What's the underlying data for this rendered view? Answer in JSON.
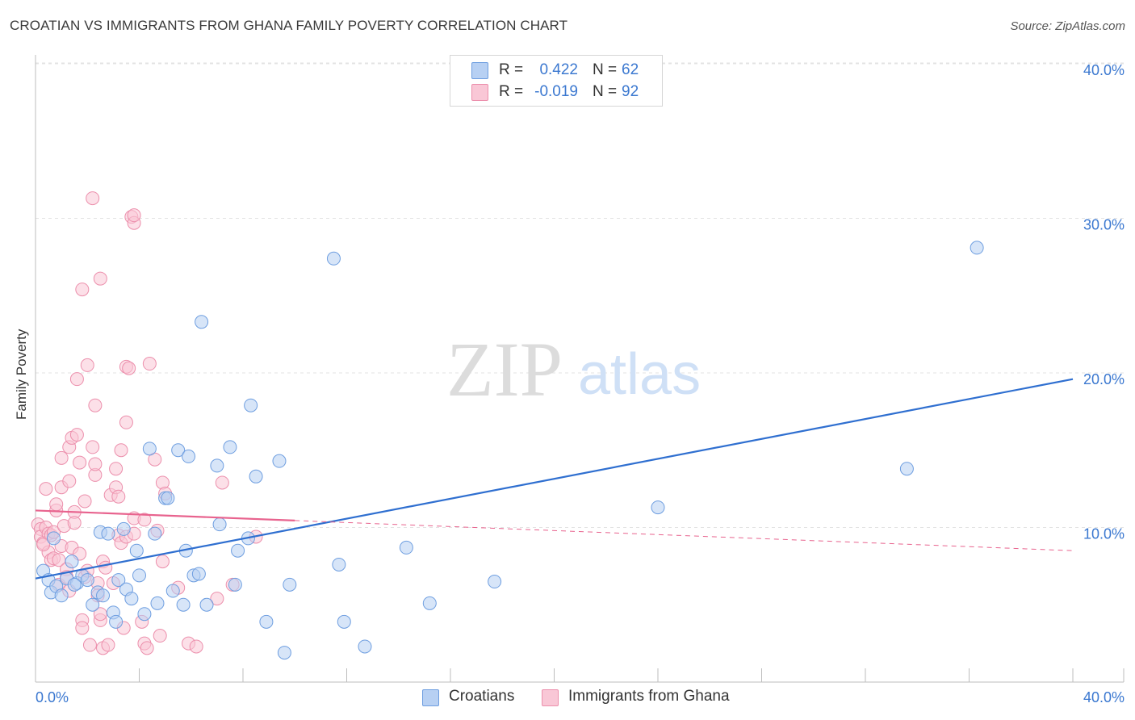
{
  "title": "CROATIAN VS IMMIGRANTS FROM GHANA FAMILY POVERTY CORRELATION CHART",
  "source": "Source: ZipAtlas.com",
  "watermark": {
    "zip": "ZIP",
    "atlas": "atlas"
  },
  "legend_top": {
    "rows": [
      {
        "r_label": "R =",
        "r_value": "0.422",
        "n_label": "N =",
        "n_value": "62",
        "color": "#b7d0f3",
        "border": "#6e9ee0"
      },
      {
        "r_label": "R =",
        "r_value": "-0.019",
        "n_label": "N =",
        "n_value": "92",
        "color": "#f9c7d6",
        "border": "#ec8fac"
      }
    ]
  },
  "bottom_legend": {
    "croatians": "Croatians",
    "ghana": "Immigrants from Ghana"
  },
  "chart_data": {
    "type": "scatter",
    "title": "CROATIAN VS IMMIGRANTS FROM GHANA FAMILY POVERTY CORRELATION CHART",
    "xlabel": "",
    "ylabel": "Family Poverty",
    "xlim": [
      0,
      40
    ],
    "ylim": [
      0,
      41
    ],
    "x_tick_labels": [
      "0.0%",
      "40.0%"
    ],
    "y_ticks": [
      10,
      20,
      30,
      40
    ],
    "y_tick_labels": [
      "10.0%",
      "20.0%",
      "30.0%",
      "40.0%"
    ],
    "grid": true,
    "series": [
      {
        "name": "Croatians",
        "color": "#6e9ee0",
        "fill": "#b7d0f3",
        "trend": {
          "x0": 0,
          "y0": 6.7,
          "x1": 40,
          "y1": 19.6,
          "solid_to": 40,
          "color": "#2f6fd0"
        },
        "points": [
          [
            0.3,
            7.2
          ],
          [
            0.5,
            6.6
          ],
          [
            0.6,
            5.8
          ],
          [
            0.8,
            6.2
          ],
          [
            1.0,
            5.6
          ],
          [
            1.2,
            6.7
          ],
          [
            1.4,
            7.8
          ],
          [
            1.6,
            6.4
          ],
          [
            1.8,
            6.9
          ],
          [
            2.0,
            6.6
          ],
          [
            2.2,
            5.0
          ],
          [
            2.4,
            5.8
          ],
          [
            2.5,
            9.7
          ],
          [
            2.6,
            5.6
          ],
          [
            2.8,
            9.6
          ],
          [
            3.0,
            4.5
          ],
          [
            3.1,
            3.9
          ],
          [
            3.2,
            6.6
          ],
          [
            3.4,
            9.9
          ],
          [
            3.5,
            6.0
          ],
          [
            3.7,
            5.4
          ],
          [
            3.9,
            8.5
          ],
          [
            4.0,
            6.9
          ],
          [
            4.2,
            4.4
          ],
          [
            4.4,
            15.1
          ],
          [
            4.6,
            9.6
          ],
          [
            4.7,
            5.1
          ],
          [
            5.0,
            11.9
          ],
          [
            5.1,
            11.9
          ],
          [
            5.3,
            5.9
          ],
          [
            5.5,
            15.0
          ],
          [
            5.7,
            5.0
          ],
          [
            5.8,
            8.5
          ],
          [
            5.9,
            14.6
          ],
          [
            6.1,
            6.9
          ],
          [
            6.3,
            7.0
          ],
          [
            6.4,
            23.3
          ],
          [
            6.6,
            5.0
          ],
          [
            7.0,
            14.0
          ],
          [
            7.1,
            10.2
          ],
          [
            7.5,
            15.2
          ],
          [
            7.7,
            6.3
          ],
          [
            7.8,
            8.5
          ],
          [
            8.2,
            9.3
          ],
          [
            8.3,
            17.9
          ],
          [
            8.5,
            13.3
          ],
          [
            8.9,
            3.9
          ],
          [
            9.4,
            14.3
          ],
          [
            9.6,
            1.9
          ],
          [
            9.8,
            6.3
          ],
          [
            11.5,
            27.4
          ],
          [
            11.7,
            7.6
          ],
          [
            11.9,
            3.9
          ],
          [
            12.7,
            2.3
          ],
          [
            14.3,
            8.7
          ],
          [
            15.2,
            5.1
          ],
          [
            17.7,
            6.5
          ],
          [
            24.0,
            11.3
          ],
          [
            33.6,
            13.8
          ],
          [
            36.3,
            28.1
          ],
          [
            0.7,
            9.3
          ],
          [
            1.5,
            6.3
          ]
        ]
      },
      {
        "name": "Immigrants from Ghana",
        "color": "#ec8fac",
        "fill": "#f9c7d6",
        "trend": {
          "x0": 0,
          "y0": 11.1,
          "x1": 40,
          "y1": 8.5,
          "solid_to": 10,
          "color": "#e8638e"
        },
        "points": [
          [
            0.1,
            10.2
          ],
          [
            0.2,
            9.9
          ],
          [
            0.2,
            9.4
          ],
          [
            0.3,
            9.0
          ],
          [
            0.4,
            10.0
          ],
          [
            0.4,
            12.5
          ],
          [
            0.5,
            8.4
          ],
          [
            0.5,
            9.6
          ],
          [
            0.6,
            7.9
          ],
          [
            0.6,
            9.5
          ],
          [
            0.7,
            9.7
          ],
          [
            0.7,
            8.0
          ],
          [
            0.8,
            11.1
          ],
          [
            0.8,
            11.5
          ],
          [
            0.9,
            6.3
          ],
          [
            0.9,
            7.9
          ],
          [
            1.0,
            8.8
          ],
          [
            1.0,
            14.5
          ],
          [
            1.0,
            12.6
          ],
          [
            1.1,
            10.1
          ],
          [
            1.2,
            7.3
          ],
          [
            1.2,
            6.8
          ],
          [
            1.3,
            15.2
          ],
          [
            1.3,
            5.9
          ],
          [
            1.3,
            13.0
          ],
          [
            1.4,
            8.7
          ],
          [
            1.4,
            15.8
          ],
          [
            1.5,
            11.0
          ],
          [
            1.5,
            10.3
          ],
          [
            1.6,
            16.0
          ],
          [
            1.6,
            19.6
          ],
          [
            1.7,
            14.2
          ],
          [
            1.7,
            8.3
          ],
          [
            1.8,
            4.0
          ],
          [
            1.8,
            3.5
          ],
          [
            1.8,
            25.4
          ],
          [
            1.9,
            6.8
          ],
          [
            1.9,
            11.7
          ],
          [
            2.0,
            20.5
          ],
          [
            2.0,
            7.2
          ],
          [
            2.1,
            2.4
          ],
          [
            2.2,
            15.2
          ],
          [
            2.2,
            31.3
          ],
          [
            2.3,
            17.9
          ],
          [
            2.3,
            13.4
          ],
          [
            2.3,
            14.1
          ],
          [
            2.4,
            6.4
          ],
          [
            2.4,
            5.6
          ],
          [
            2.5,
            4.0
          ],
          [
            2.5,
            4.4
          ],
          [
            2.5,
            26.1
          ],
          [
            2.6,
            2.2
          ],
          [
            2.6,
            7.8
          ],
          [
            2.7,
            7.4
          ],
          [
            2.8,
            2.4
          ],
          [
            2.9,
            12.1
          ],
          [
            3.0,
            6.4
          ],
          [
            3.1,
            13.8
          ],
          [
            3.1,
            12.6
          ],
          [
            3.2,
            9.5
          ],
          [
            3.2,
            12.0
          ],
          [
            3.3,
            9.0
          ],
          [
            3.3,
            15.0
          ],
          [
            3.4,
            3.5
          ],
          [
            3.5,
            16.8
          ],
          [
            3.5,
            20.4
          ],
          [
            3.5,
            9.4
          ],
          [
            3.6,
            20.3
          ],
          [
            3.7,
            30.1
          ],
          [
            3.8,
            29.7
          ],
          [
            3.8,
            30.2
          ],
          [
            3.8,
            10.6
          ],
          [
            3.8,
            9.6
          ],
          [
            4.1,
            3.9
          ],
          [
            4.2,
            2.5
          ],
          [
            4.2,
            10.5
          ],
          [
            4.3,
            2.2
          ],
          [
            4.4,
            20.6
          ],
          [
            4.6,
            14.4
          ],
          [
            4.7,
            9.8
          ],
          [
            4.8,
            3.0
          ],
          [
            4.9,
            7.8
          ],
          [
            4.9,
            12.9
          ],
          [
            5.0,
            12.2
          ],
          [
            5.5,
            6.1
          ],
          [
            5.9,
            2.5
          ],
          [
            6.2,
            2.3
          ],
          [
            7.0,
            5.4
          ],
          [
            7.2,
            12.9
          ],
          [
            7.6,
            6.3
          ],
          [
            8.5,
            9.4
          ],
          [
            0.3,
            8.9
          ]
        ]
      }
    ]
  }
}
